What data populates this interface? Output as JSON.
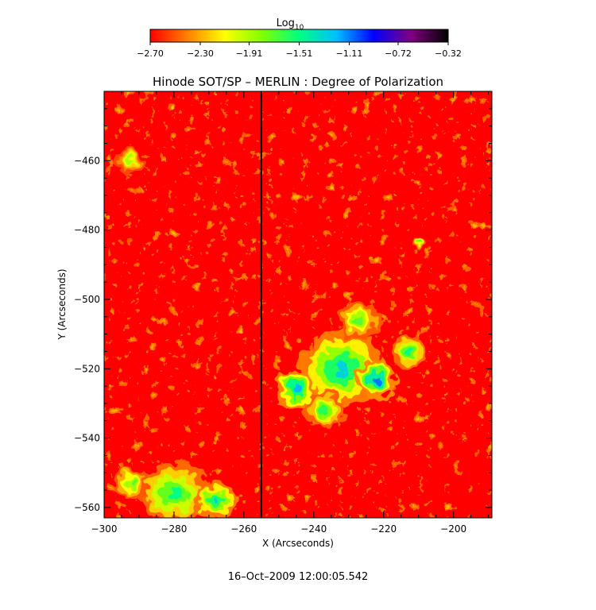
{
  "chart_data": {
    "type": "heatmap",
    "title": "Hinode SOT/SP – MERLIN : Degree of Polarization",
    "xlabel": "X (Arcseconds)",
    "ylabel": "Y (Arcseconds)",
    "xlim": [
      -300,
      -189
    ],
    "ylim": [
      -563,
      -440
    ],
    "x_ticks": [
      -300,
      -280,
      -260,
      -240,
      -220,
      -200
    ],
    "y_ticks": [
      -460,
      -480,
      -500,
      -520,
      -540,
      -560
    ],
    "x_tick_labels": [
      "−300",
      "−280",
      "−260",
      "−240",
      "−220",
      "−200"
    ],
    "y_tick_labels": [
      "−460",
      "−480",
      "−500",
      "−520",
      "−540",
      "−560"
    ],
    "colorbar": {
      "label": "Log",
      "label_sub": "10",
      "min": -2.7,
      "max": -0.32,
      "ticks": [
        -2.7,
        -2.3,
        -1.91,
        -1.51,
        -1.11,
        -0.72,
        -0.32
      ],
      "tick_labels": [
        "−2.70",
        "−2.30",
        "−1.91",
        "−1.51",
        "−1.11",
        "−0.72",
        "−0.32"
      ],
      "colormap": [
        "#ff0000",
        "#ff8000",
        "#ffff00",
        "#80ff00",
        "#00ff80",
        "#00c0ff",
        "#0000ff",
        "#800080",
        "#000000"
      ]
    },
    "regions": [
      {
        "x": -232,
        "y": -520,
        "r": 12,
        "value": -1.3
      },
      {
        "x": -222,
        "y": -523,
        "r": 6,
        "value": -1.1
      },
      {
        "x": -245,
        "y": -526,
        "r": 6,
        "value": -1.2
      },
      {
        "x": -227,
        "y": -506,
        "r": 6,
        "value": -1.7
      },
      {
        "x": -213,
        "y": -515,
        "r": 5,
        "value": -1.5
      },
      {
        "x": -237,
        "y": -532,
        "r": 6,
        "value": -1.6
      },
      {
        "x": -280,
        "y": -556,
        "r": 10,
        "value": -1.5
      },
      {
        "x": -268,
        "y": -558,
        "r": 6,
        "value": -1.3
      },
      {
        "x": -292,
        "y": -553,
        "r": 5,
        "value": -1.7
      },
      {
        "x": -293,
        "y": -460,
        "r": 4,
        "value": -1.9
      },
      {
        "x": -210,
        "y": -484,
        "r": 2,
        "value": -1.7
      }
    ],
    "vertical_line_x": -255,
    "timestamp": "16–Oct–2009 12:00:05.542"
  }
}
